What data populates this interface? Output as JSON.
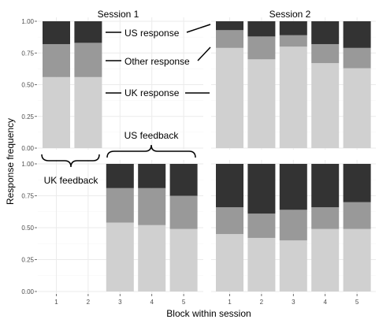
{
  "chart_data": {
    "type": "bar",
    "stacked": true,
    "xlabel": "Block within session",
    "ylabel": "Response frequency",
    "ylim": [
      0,
      1
    ],
    "yticks": [
      "0.00",
      "0.25",
      "0.50",
      "0.75",
      "1.00"
    ],
    "categories": [
      "1",
      "2",
      "3",
      "4",
      "5"
    ],
    "colors": {
      "uk": "#d0d0d0",
      "other": "#999999",
      "us": "#333333",
      "panel_bg": "#ffffff",
      "grid": "#ebebeb"
    },
    "facet_columns": [
      "Session 1",
      "Session 2"
    ],
    "panels": [
      {
        "id": "s1-uk",
        "session": "Session 1",
        "row": 1,
        "blocks": [
          "1",
          "2"
        ],
        "series": [
          {
            "name": "UK response",
            "values": [
              0.56,
              0.56
            ]
          },
          {
            "name": "Other response",
            "values": [
              0.26,
              0.27
            ]
          },
          {
            "name": "US response",
            "values": [
              0.18,
              0.17
            ]
          }
        ]
      },
      {
        "id": "s1-us",
        "session": "Session 1",
        "row": 2,
        "blocks": [
          "3",
          "4",
          "5"
        ],
        "series": [
          {
            "name": "UK response",
            "values": [
              0.54,
              0.52,
              0.49
            ]
          },
          {
            "name": "Other response",
            "values": [
              0.27,
              0.29,
              0.26
            ]
          },
          {
            "name": "US response",
            "values": [
              0.19,
              0.19,
              0.25
            ]
          }
        ]
      },
      {
        "id": "s2-uk",
        "session": "Session 2",
        "row": 1,
        "blocks": [
          "1",
          "2",
          "3",
          "4",
          "5"
        ],
        "series": [
          {
            "name": "UK response",
            "values": [
              0.79,
              0.7,
              0.8,
              0.67,
              0.63
            ]
          },
          {
            "name": "Other response",
            "values": [
              0.14,
              0.18,
              0.09,
              0.15,
              0.16
            ]
          },
          {
            "name": "US response",
            "values": [
              0.07,
              0.12,
              0.11,
              0.18,
              0.21
            ]
          }
        ]
      },
      {
        "id": "s2-us",
        "session": "Session 2",
        "row": 2,
        "blocks": [
          "1",
          "2",
          "3",
          "4",
          "5"
        ],
        "series": [
          {
            "name": "UK response",
            "values": [
              0.45,
              0.42,
              0.4,
              0.49,
              0.49
            ]
          },
          {
            "name": "Other response",
            "values": [
              0.21,
              0.19,
              0.24,
              0.17,
              0.21
            ]
          },
          {
            "name": "US response",
            "values": [
              0.34,
              0.39,
              0.36,
              0.34,
              0.3
            ]
          }
        ]
      }
    ],
    "annotations": {
      "us_response": "US response",
      "other_response": "Other response",
      "uk_response": "UK response",
      "uk_feedback": "UK feedback",
      "us_feedback": "US feedback"
    }
  }
}
